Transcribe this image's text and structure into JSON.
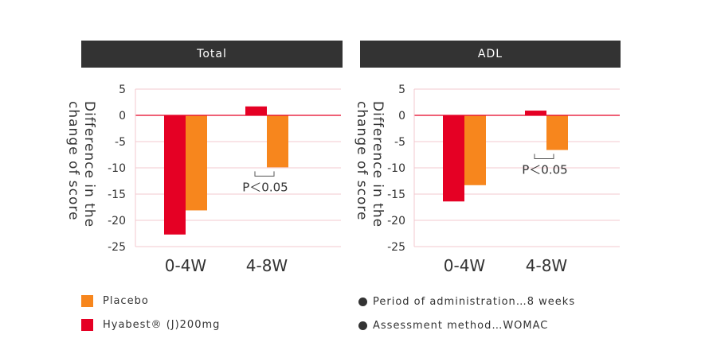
{
  "colors": {
    "hyabest": "#e50024",
    "placebo": "#f7861d",
    "zero_line": "#e50024",
    "grid": "#f3c9cf",
    "header_bg": "#333333"
  },
  "legend": {
    "placebo": "Placebo",
    "hyabest": "Hyabest® (J)200mg"
  },
  "notes": {
    "period": "Period of administration…8 weeks",
    "method": "Assessment method…WOMAC"
  },
  "chart_data": [
    {
      "type": "bar",
      "title": "Total",
      "ylabel": "Difference in the\nchange of score",
      "ylim": [
        -25,
        5
      ],
      "yticks": [
        5,
        0,
        -5,
        -10,
        -15,
        -20,
        -25
      ],
      "categories": [
        "0-4W",
        "4-8W"
      ],
      "series": [
        {
          "name": "Hyabest® (J)200mg",
          "values": [
            -22.7,
            1.7
          ]
        },
        {
          "name": "Placebo",
          "values": [
            -18.1,
            -9.9
          ]
        }
      ],
      "annotations": [
        {
          "category": "4-8W",
          "text": "P＜0.05"
        }
      ],
      "grid": true,
      "legend": "bottom-left"
    },
    {
      "type": "bar",
      "title": "ADL",
      "ylabel": "Difference in the\nchange of score",
      "ylim": [
        -25,
        5
      ],
      "yticks": [
        5,
        0,
        -5,
        -10,
        -15,
        -20,
        -25
      ],
      "categories": [
        "0-4W",
        "4-8W"
      ],
      "series": [
        {
          "name": "Hyabest® (J)200mg",
          "values": [
            -16.4,
            0.9
          ]
        },
        {
          "name": "Placebo",
          "values": [
            -13.3,
            -6.6
          ]
        }
      ],
      "annotations": [
        {
          "category": "4-8W",
          "text": "P＜0.05"
        }
      ],
      "grid": true,
      "legend": "bottom-left"
    }
  ]
}
